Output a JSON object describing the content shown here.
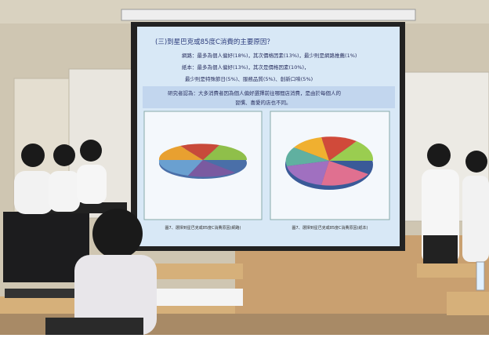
{
  "slide": {
    "title": "(三)到星巴克或85度C消費的主要原因？",
    "lines": [
      "網路：最多為個人偏好(18%)，其次價格因素(13%)，最少則是網路推薦(1%)",
      "紙本：最多為個人偏好(13%)，其次是價格因素(10%)，",
      "最少則是特殊節日(5%)、服務品質(5%)、創新口味(5%)"
    ],
    "note": [
      "研究者認為：大多消費者因為個人偏好選擇前往哪間店消費，是由於每個人的",
      "習慣、喜愛的店也不同。"
    ],
    "captions": [
      "圖7、選擇到星巴克或85度C消費原因(網路)",
      "圖7、選擇到星巴克或85度C消費原因(紙本)"
    ]
  }
}
